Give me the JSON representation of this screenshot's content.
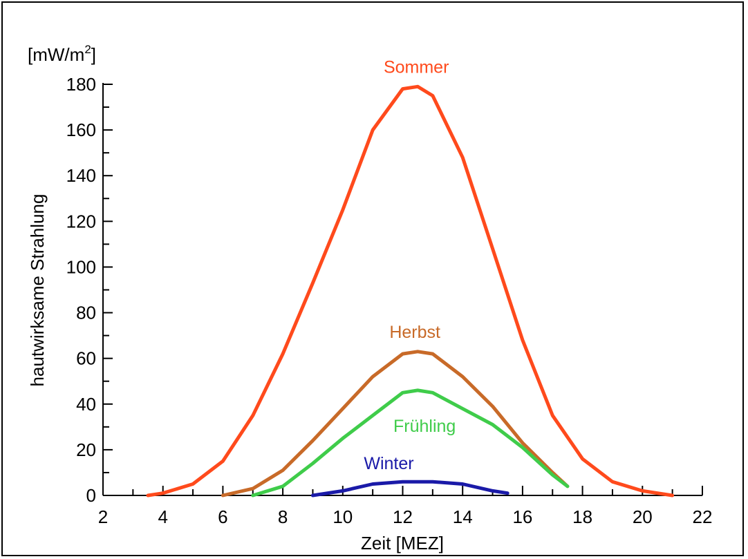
{
  "chart_data": {
    "type": "line",
    "unit_label": "[mW/m²]",
    "unit_base": "[mW/m",
    "unit_sup": "2",
    "unit_close": "]",
    "xlabel": "Zeit [MEZ]",
    "ylabel": "hautwirksame Strahlung",
    "xlim": [
      2,
      22
    ],
    "ylim": [
      0,
      180
    ],
    "x_ticks": [
      2,
      4,
      6,
      8,
      10,
      12,
      14,
      16,
      18,
      20,
      22
    ],
    "y_ticks": [
      0,
      20,
      40,
      60,
      80,
      100,
      120,
      140,
      160,
      180
    ],
    "grid": false,
    "series": [
      {
        "name": "Sommer",
        "color": "#ff4a1c",
        "x": [
          3.5,
          4,
          5,
          6,
          7,
          8,
          9,
          10,
          11,
          12,
          12.5,
          13,
          14,
          15,
          16,
          17,
          18,
          19,
          20,
          21
        ],
        "y": [
          0,
          1,
          5,
          15,
          35,
          62,
          93,
          125,
          160,
          178,
          179,
          175,
          148,
          108,
          68,
          35,
          16,
          6,
          2,
          0
        ]
      },
      {
        "name": "Herbst",
        "color": "#c86a28",
        "x": [
          6,
          7,
          8,
          9,
          10,
          11,
          12,
          12.5,
          13,
          14,
          15,
          16,
          17,
          17.5
        ],
        "y": [
          0,
          3,
          11,
          24,
          38,
          52,
          62,
          63,
          62,
          52,
          39,
          23,
          10,
          4
        ]
      },
      {
        "name": "Frühling",
        "color": "#3fcc4a",
        "x": [
          7,
          8,
          9,
          10,
          11,
          12,
          12.5,
          13,
          14,
          15,
          16,
          17,
          17.5
        ],
        "y": [
          0,
          4,
          14,
          25,
          35,
          45,
          46,
          45,
          38,
          31,
          21,
          9,
          4
        ]
      },
      {
        "name": "Winter",
        "color": "#1a1aa8",
        "x": [
          9,
          10,
          11,
          12,
          12.5,
          13,
          14,
          15,
          15.5
        ],
        "y": [
          0,
          2,
          5,
          6,
          6,
          6,
          5,
          2,
          1
        ]
      }
    ]
  }
}
